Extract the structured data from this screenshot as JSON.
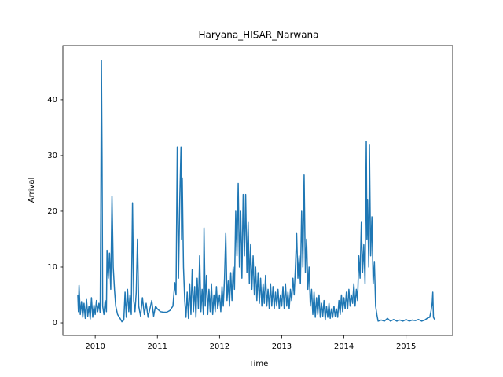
{
  "chart_data": {
    "type": "line",
    "title": "Haryana_HISAR_Narwana",
    "xlabel": "Time",
    "ylabel": "Arrival",
    "color": "#1f77b4",
    "xlim": [
      2009.48,
      2015.75
    ],
    "ylim": [
      -2.25,
      49.7
    ],
    "xticks": [
      2010,
      2011,
      2012,
      2013,
      2014,
      2015
    ],
    "yticks": [
      0,
      10,
      20,
      30,
      40
    ],
    "x": [
      2009.72,
      2009.73,
      2009.74,
      2009.76,
      2009.78,
      2009.8,
      2009.82,
      2009.84,
      2009.86,
      2009.88,
      2009.9,
      2009.92,
      2009.94,
      2009.96,
      2009.98,
      2010.0,
      2010.02,
      2010.04,
      2010.06,
      2010.08,
      2010.09,
      2010.1,
      2010.11,
      2010.12,
      2010.14,
      2010.16,
      2010.18,
      2010.19,
      2010.21,
      2010.23,
      2010.25,
      2010.27,
      2010.29,
      2010.31,
      2010.33,
      2010.36,
      2010.4,
      2010.43,
      2010.46,
      2010.48,
      2010.5,
      2010.52,
      2010.54,
      2010.56,
      2010.58,
      2010.6,
      2010.62,
      2010.64,
      2010.66,
      2010.68,
      2010.7,
      2010.73,
      2010.76,
      2010.79,
      2010.82,
      2010.85,
      2010.88,
      2010.91,
      2010.94,
      2010.97,
      2011.0,
      2011.05,
      2011.1,
      2011.15,
      2011.2,
      2011.25,
      2011.28,
      2011.3,
      2011.32,
      2011.34,
      2011.36,
      2011.38,
      2011.39,
      2011.4,
      2011.42,
      2011.44,
      2011.46,
      2011.48,
      2011.5,
      2011.52,
      2011.54,
      2011.56,
      2011.58,
      2011.6,
      2011.62,
      2011.64,
      2011.66,
      2011.68,
      2011.7,
      2011.72,
      2011.74,
      2011.75,
      2011.77,
      2011.79,
      2011.81,
      2011.83,
      2011.85,
      2011.87,
      2011.89,
      2011.91,
      2011.93,
      2011.95,
      2011.97,
      2012.0,
      2012.02,
      2012.04,
      2012.06,
      2012.08,
      2012.1,
      2012.12,
      2012.14,
      2012.16,
      2012.18,
      2012.2,
      2012.22,
      2012.24,
      2012.26,
      2012.28,
      2012.3,
      2012.32,
      2012.34,
      2012.36,
      2012.38,
      2012.4,
      2012.42,
      2012.44,
      2012.46,
      2012.48,
      2012.5,
      2012.52,
      2012.54,
      2012.56,
      2012.58,
      2012.6,
      2012.62,
      2012.64,
      2012.66,
      2012.68,
      2012.7,
      2012.72,
      2012.74,
      2012.76,
      2012.78,
      2012.8,
      2012.82,
      2012.84,
      2012.86,
      2012.88,
      2012.9,
      2012.92,
      2012.94,
      2012.96,
      2012.98,
      2013.0,
      2013.02,
      2013.04,
      2013.06,
      2013.08,
      2013.1,
      2013.12,
      2013.14,
      2013.16,
      2013.18,
      2013.2,
      2013.22,
      2013.24,
      2013.26,
      2013.28,
      2013.3,
      2013.32,
      2013.34,
      2013.36,
      2013.38,
      2013.4,
      2013.42,
      2013.44,
      2013.46,
      2013.48,
      2013.5,
      2013.52,
      2013.54,
      2013.56,
      2013.58,
      2013.6,
      2013.62,
      2013.64,
      2013.66,
      2013.68,
      2013.7,
      2013.72,
      2013.74,
      2013.76,
      2013.78,
      2013.8,
      2013.82,
      2013.84,
      2013.86,
      2013.88,
      2013.9,
      2013.92,
      2013.94,
      2013.96,
      2013.98,
      2014.0,
      2014.02,
      2014.04,
      2014.06,
      2014.08,
      2014.1,
      2014.12,
      2014.14,
      2014.16,
      2014.18,
      2014.2,
      2014.22,
      2014.24,
      2014.26,
      2014.28,
      2014.3,
      2014.32,
      2014.34,
      2014.36,
      2014.37,
      2014.38,
      2014.4,
      2014.41,
      2014.43,
      2014.45,
      2014.47,
      2014.49,
      2014.51,
      2014.53,
      2014.55,
      2014.6,
      2014.65,
      2014.7,
      2014.75,
      2014.8,
      2014.85,
      2014.9,
      2014.95,
      2015.0,
      2015.05,
      2015.1,
      2015.15,
      2015.2,
      2015.25,
      2015.3,
      2015.35,
      2015.38,
      2015.4,
      2015.42,
      2015.43,
      2015.44,
      2015.46
    ],
    "values": [
      5.0,
      2.0,
      6.7,
      1.5,
      3.8,
      1.0,
      3.5,
      0.8,
      4.2,
      1.2,
      3.0,
      0.7,
      4.5,
      1.0,
      3.2,
      1.5,
      4.0,
      2.0,
      3.5,
      1.8,
      20,
      47,
      30,
      3.0,
      1.5,
      4.0,
      2.0,
      13,
      8,
      12.5,
      6,
      22.7,
      10,
      6,
      3,
      1.5,
      0.8,
      0.2,
      0.5,
      5.5,
      1.0,
      6.0,
      2.0,
      5.0,
      1.5,
      21.5,
      4,
      2.0,
      5.5,
      15,
      3,
      1.2,
      4.5,
      1.5,
      3.5,
      1.0,
      2.5,
      4.0,
      1.2,
      3.0,
      2.5,
      2.0,
      1.9,
      1.9,
      2.2,
      3.0,
      7.2,
      5,
      31.5,
      8,
      22,
      31.5,
      15,
      26,
      10,
      4,
      1.0,
      5.5,
      0.8,
      7.0,
      1.5,
      9.5,
      2.0,
      6.5,
      1.0,
      8.0,
      2.5,
      12,
      2.0,
      6.0,
      1.5,
      17,
      3.0,
      8.5,
      1.5,
      6.0,
      2.0,
      7.0,
      1.5,
      5.0,
      2.0,
      6.5,
      2.5,
      5.0,
      2.0,
      6.5,
      3.0,
      8.0,
      16,
      4.0,
      7.5,
      3.0,
      9.0,
      4.0,
      10,
      6,
      20,
      12,
      25,
      10,
      20,
      8,
      23,
      12,
      23,
      9,
      18,
      7,
      14,
      6,
      12,
      5,
      10,
      4,
      9,
      3.5,
      8,
      3.0,
      7,
      3.5,
      8.5,
      3.0,
      6.0,
      2.5,
      7.0,
      3.0,
      6.5,
      2.5,
      5.5,
      3.0,
      6.0,
      2.5,
      5.0,
      3.0,
      6.5,
      2.5,
      7.0,
      3.0,
      5.5,
      2.5,
      6.0,
      4.0,
      8.0,
      5.0,
      10,
      16,
      8,
      12,
      7,
      20,
      10,
      26.5,
      9,
      15,
      6,
      10,
      3,
      6,
      1.5,
      5.5,
      1.0,
      4.5,
      1.5,
      5.0,
      1.0,
      3.5,
      1.2,
      4.0,
      0.5,
      3.0,
      1.0,
      3.5,
      0.8,
      2.5,
      1.0,
      3.0,
      1.2,
      2.5,
      1.0,
      4.0,
      1.5,
      5.0,
      2.0,
      4.5,
      2.5,
      5.5,
      2.5,
      6.0,
      3.0,
      5.0,
      3.5,
      7.0,
      3.0,
      6.0,
      4.0,
      12,
      8,
      18,
      9,
      14,
      7,
      32.5,
      15,
      22,
      10,
      32,
      12,
      19,
      7,
      11,
      3,
      1.5,
      0.3,
      0.5,
      0.3,
      0.8,
      0.3,
      0.6,
      0.3,
      0.5,
      0.3,
      0.6,
      0.3,
      0.5,
      0.4,
      0.6,
      0.3,
      0.5,
      0.9,
      1.0,
      2.0,
      3.5,
      5.5,
      1.0,
      0.6
    ]
  }
}
